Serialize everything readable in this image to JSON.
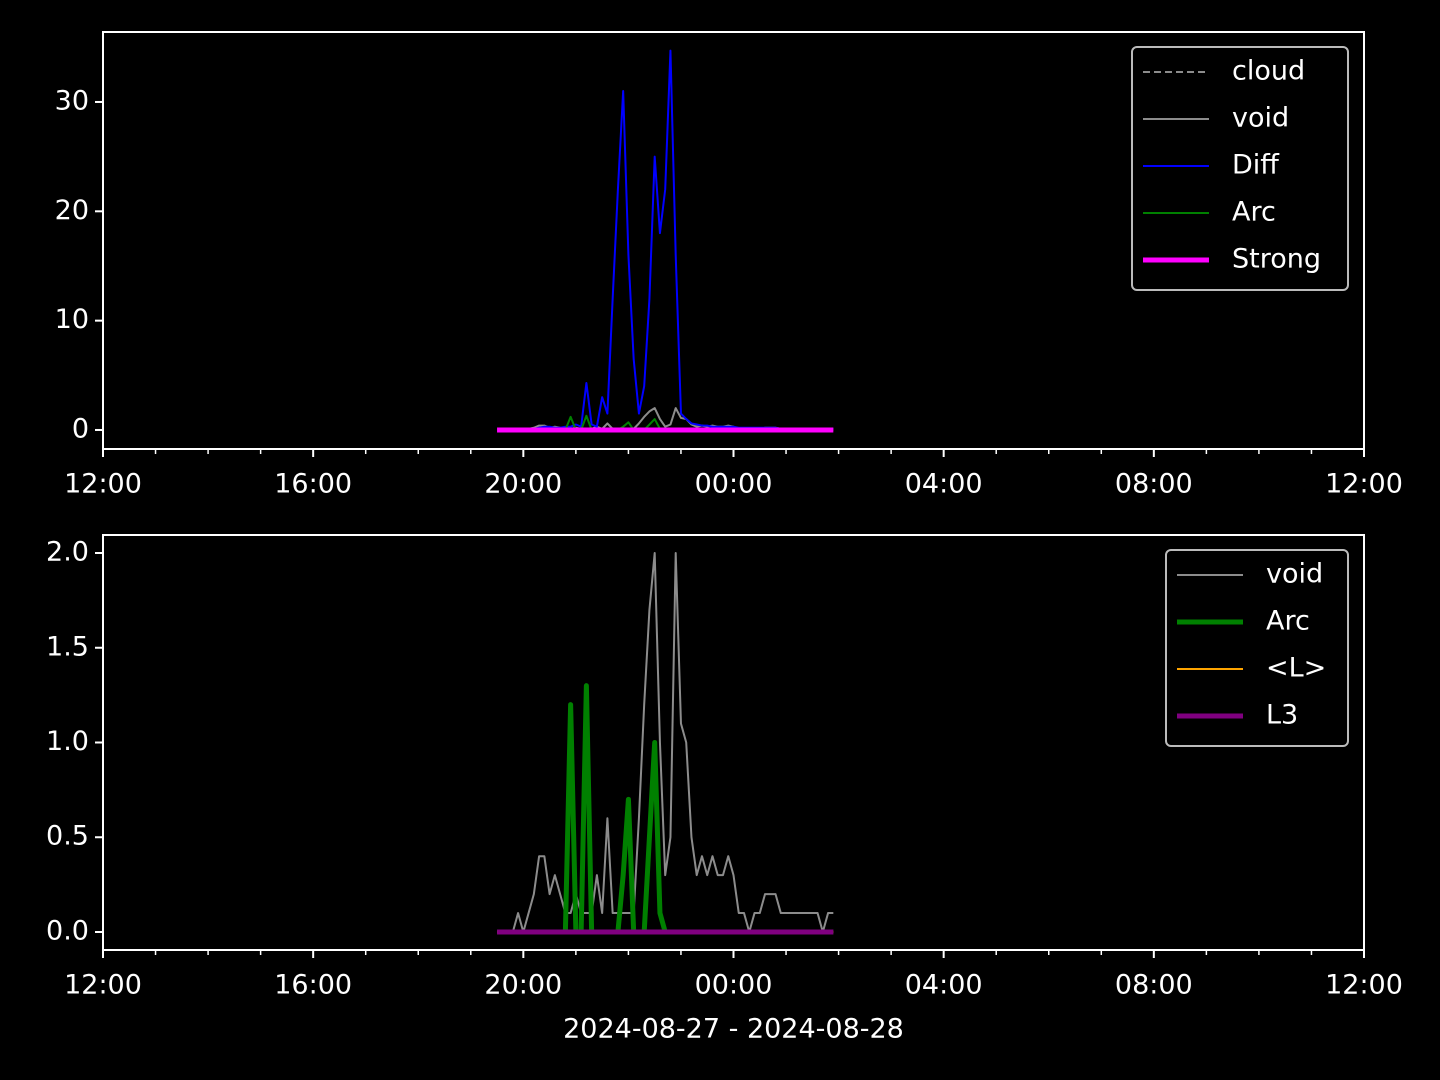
{
  "chart_data": [
    {
      "type": "line",
      "x": [
        7.5,
        7.6,
        7.7,
        7.8,
        7.9,
        8.0,
        8.1,
        8.2,
        8.3,
        8.4,
        8.5,
        8.6,
        8.7,
        8.8,
        8.9,
        9.0,
        9.1,
        9.2,
        9.3,
        9.4,
        9.5,
        9.6,
        9.7,
        9.8,
        9.9,
        10.0,
        10.1,
        10.2,
        10.3,
        10.4,
        10.5,
        10.6,
        10.7,
        10.8,
        10.9,
        11.0,
        11.1,
        11.2,
        11.3,
        11.4,
        11.5,
        11.6,
        11.7,
        11.8,
        11.9,
        12.0,
        12.1,
        12.2,
        12.3,
        12.4,
        12.5,
        12.6,
        12.7,
        12.8,
        12.9,
        13.0,
        13.1,
        13.2,
        13.3,
        13.4,
        13.5,
        13.6,
        13.7,
        13.8,
        13.9
      ],
      "xlim": [
        0,
        24
      ],
      "xticks": [
        {
          "value": 0,
          "label": "12:00"
        },
        {
          "value": 4,
          "label": "16:00"
        },
        {
          "value": 8,
          "label": "20:00"
        },
        {
          "value": 12,
          "label": "00:00"
        },
        {
          "value": 16,
          "label": "04:00"
        },
        {
          "value": 20,
          "label": "08:00"
        },
        {
          "value": 24,
          "label": "12:00"
        }
      ],
      "xminorticks": [
        1,
        2,
        3,
        5,
        6,
        7,
        9,
        10,
        11,
        13,
        14,
        15,
        17,
        18,
        19,
        21,
        22,
        23
      ],
      "ylim": [
        -1.74,
        36.4
      ],
      "yticks": [
        0,
        10,
        20,
        30
      ],
      "legend": "upper right",
      "series": [
        {
          "name": "cloud",
          "color": "#8c8c8c",
          "linestyle": "dashed",
          "linewidth": 2,
          "values": [
            0,
            0,
            0,
            0,
            0,
            0,
            0,
            0,
            0,
            0,
            0,
            0,
            0,
            0,
            0,
            0,
            0,
            0,
            0,
            0,
            0,
            0,
            0,
            0,
            0,
            0,
            0,
            0,
            0,
            0,
            0,
            0,
            0,
            0,
            0,
            0,
            0,
            0,
            0,
            0,
            0,
            0,
            0,
            0,
            0,
            0,
            0,
            0,
            0,
            0,
            0,
            0,
            0,
            0,
            0,
            0,
            0,
            0,
            0,
            0,
            0,
            0,
            0,
            0,
            0
          ]
        },
        {
          "name": "void",
          "color": "#8c8c8c",
          "linestyle": "solid",
          "linewidth": 2,
          "values": [
            0,
            0,
            0,
            0,
            0.1,
            0,
            0.1,
            0.2,
            0.4,
            0.4,
            0.2,
            0.3,
            0.2,
            0.1,
            0.1,
            0.2,
            0.1,
            0.1,
            0.1,
            0.3,
            0.1,
            0.6,
            0.1,
            0.1,
            0.1,
            0.1,
            0.1,
            0.6,
            1.2,
            1.7,
            2.0,
            1.0,
            0.3,
            0.5,
            2.0,
            1.1,
            1.0,
            0.5,
            0.3,
            0.4,
            0.3,
            0.4,
            0.3,
            0.3,
            0.4,
            0.3,
            0.1,
            0.1,
            0,
            0.1,
            0.1,
            0.2,
            0.2,
            0.2,
            0.1,
            0.1,
            0.1,
            0.1,
            0.1,
            0.1,
            0.1,
            0.1,
            0,
            0.1,
            0.1
          ]
        },
        {
          "name": "Diff",
          "color": "#0000ff",
          "linestyle": "solid",
          "linewidth": 2,
          "values": [
            0,
            0,
            0,
            0,
            0,
            0,
            0,
            0.1,
            0.2,
            0.3,
            0.3,
            0.2,
            0.2,
            0.3,
            0.3,
            0.5,
            0.3,
            4.3,
            0.5,
            0.3,
            3.0,
            1.5,
            12,
            22,
            31,
            16,
            6.5,
            1.5,
            4,
            12,
            25,
            18,
            22,
            34.7,
            16,
            1.5,
            1,
            0.6,
            0.5,
            0.4,
            0.4,
            0.3,
            0.3,
            0.3,
            0.3,
            0.3,
            0.2,
            0.2,
            0.2,
            0.2,
            0.2,
            0.2,
            0.2,
            0.2,
            0.1,
            0.1,
            0.1,
            0.1,
            0.1,
            0.1,
            0.1,
            0.1,
            0.1,
            0.1,
            0.1
          ]
        },
        {
          "name": "Arc",
          "color": "#008000",
          "linestyle": "solid",
          "linewidth": 2,
          "values": [
            0,
            0,
            0,
            0,
            0,
            0,
            0,
            0,
            0,
            0,
            0,
            0,
            0,
            0,
            1.2,
            0,
            0,
            1.3,
            0,
            0,
            0,
            0,
            0,
            0,
            0.3,
            0.7,
            0,
            0,
            0,
            0.5,
            1.0,
            0.1,
            0,
            0,
            0,
            0,
            0,
            0,
            0,
            0,
            0,
            0,
            0,
            0,
            0,
            0,
            0,
            0,
            0,
            0,
            0,
            0,
            0,
            0,
            0,
            0,
            0,
            0,
            0,
            0,
            0,
            0,
            0,
            0,
            0
          ]
        },
        {
          "name": "Strong",
          "color": "#ff00ff",
          "linestyle": "solid",
          "linewidth": 5,
          "values": [
            0,
            0,
            0,
            0,
            0,
            0,
            0,
            0,
            0,
            0,
            0,
            0,
            0,
            0,
            0,
            0,
            0,
            0,
            0,
            0,
            0,
            0,
            0,
            0,
            0,
            0,
            0,
            0,
            0,
            0,
            0,
            0,
            0,
            0,
            0,
            0,
            0,
            0,
            0,
            0,
            0,
            0,
            0,
            0,
            0,
            0,
            0,
            0,
            0,
            0,
            0,
            0,
            0,
            0,
            0,
            0,
            0,
            0,
            0,
            0,
            0,
            0,
            0,
            0,
            0
          ]
        }
      ]
    },
    {
      "type": "line",
      "xlabel": "2024-08-27 - 2024-08-28",
      "x": [
        7.5,
        7.6,
        7.7,
        7.8,
        7.9,
        8.0,
        8.1,
        8.2,
        8.3,
        8.4,
        8.5,
        8.6,
        8.7,
        8.8,
        8.9,
        9.0,
        9.1,
        9.2,
        9.3,
        9.4,
        9.5,
        9.6,
        9.7,
        9.8,
        9.9,
        10.0,
        10.1,
        10.2,
        10.3,
        10.4,
        10.5,
        10.6,
        10.7,
        10.8,
        10.9,
        11.0,
        11.1,
        11.2,
        11.3,
        11.4,
        11.5,
        11.6,
        11.7,
        11.8,
        11.9,
        12.0,
        12.1,
        12.2,
        12.3,
        12.4,
        12.5,
        12.6,
        12.7,
        12.8,
        12.9,
        13.0,
        13.1,
        13.2,
        13.3,
        13.4,
        13.5,
        13.6,
        13.7,
        13.8,
        13.9
      ],
      "xlim": [
        0,
        24
      ],
      "xticks": [
        {
          "value": 0,
          "label": "12:00"
        },
        {
          "value": 4,
          "label": "16:00"
        },
        {
          "value": 8,
          "label": "20:00"
        },
        {
          "value": 12,
          "label": "00:00"
        },
        {
          "value": 16,
          "label": "04:00"
        },
        {
          "value": 20,
          "label": "08:00"
        },
        {
          "value": 24,
          "label": "12:00"
        }
      ],
      "xminorticks": [
        1,
        2,
        3,
        5,
        6,
        7,
        9,
        10,
        11,
        13,
        14,
        15,
        17,
        18,
        19,
        21,
        22,
        23
      ],
      "ylim": [
        -0.095,
        2.095
      ],
      "yticks": [
        {
          "value": 0,
          "label": "0.0"
        },
        {
          "value": 0.5,
          "label": "0.5"
        },
        {
          "value": 1,
          "label": "1.0"
        },
        {
          "value": 1.5,
          "label": "1.5"
        },
        {
          "value": 2,
          "label": "2.0"
        }
      ],
      "legend": "upper right",
      "series": [
        {
          "name": "void",
          "color": "#8c8c8c",
          "linestyle": "solid",
          "linewidth": 2,
          "values": [
            0,
            0,
            0,
            0,
            0.1,
            0,
            0.1,
            0.2,
            0.4,
            0.4,
            0.2,
            0.3,
            0.2,
            0.1,
            0.1,
            0.2,
            0.1,
            0.1,
            0.1,
            0.3,
            0.1,
            0.6,
            0.1,
            0.1,
            0.1,
            0.1,
            0.1,
            0.6,
            1.2,
            1.7,
            2.0,
            1.0,
            0.3,
            0.5,
            2.0,
            1.1,
            1.0,
            0.5,
            0.3,
            0.4,
            0.3,
            0.4,
            0.3,
            0.3,
            0.4,
            0.3,
            0.1,
            0.1,
            0,
            0.1,
            0.1,
            0.2,
            0.2,
            0.2,
            0.1,
            0.1,
            0.1,
            0.1,
            0.1,
            0.1,
            0.1,
            0.1,
            0,
            0.1,
            0.1
          ]
        },
        {
          "name": "Arc",
          "color": "#008000",
          "linestyle": "solid",
          "linewidth": 5,
          "values": [
            0,
            0,
            0,
            0,
            0,
            0,
            0,
            0,
            0,
            0,
            0,
            0,
            0,
            0,
            1.2,
            0,
            0,
            1.3,
            0,
            0,
            0,
            0,
            0,
            0,
            0.3,
            0.7,
            0,
            0,
            0,
            0.5,
            1.0,
            0.1,
            0,
            0,
            0,
            0,
            0,
            0,
            0,
            0,
            0,
            0,
            0,
            0,
            0,
            0,
            0,
            0,
            0,
            0,
            0,
            0,
            0,
            0,
            0,
            0,
            0,
            0,
            0,
            0,
            0,
            0,
            0,
            0,
            0
          ]
        },
        {
          "name": "<L>",
          "color": "#ffa500",
          "linestyle": "solid",
          "linewidth": 2,
          "values": [
            0,
            0,
            0,
            0,
            0,
            0,
            0,
            0,
            0,
            0,
            0,
            0,
            0,
            0,
            0,
            0,
            0,
            0,
            0,
            0,
            0,
            0,
            0,
            0,
            0,
            0,
            0,
            0,
            0,
            0,
            0,
            0,
            0,
            0,
            0,
            0,
            0,
            0,
            0,
            0,
            0,
            0,
            0,
            0,
            0,
            0,
            0,
            0,
            0,
            0,
            0,
            0,
            0,
            0,
            0,
            0,
            0,
            0,
            0,
            0,
            0,
            0,
            0,
            0,
            0
          ]
        },
        {
          "name": "L3",
          "color": "#800080",
          "linestyle": "solid",
          "linewidth": 5,
          "values": [
            0,
            0,
            0,
            0,
            0,
            0,
            0,
            0,
            0,
            0,
            0,
            0,
            0,
            0,
            0,
            0,
            0,
            0,
            0,
            0,
            0,
            0,
            0,
            0,
            0,
            0,
            0,
            0,
            0,
            0,
            0,
            0,
            0,
            0,
            0,
            0,
            0,
            0,
            0,
            0,
            0,
            0,
            0,
            0,
            0,
            0,
            0,
            0,
            0,
            0,
            0,
            0,
            0,
            0,
            0,
            0,
            0,
            0,
            0,
            0,
            0,
            0,
            0,
            0,
            0
          ]
        }
      ]
    }
  ]
}
